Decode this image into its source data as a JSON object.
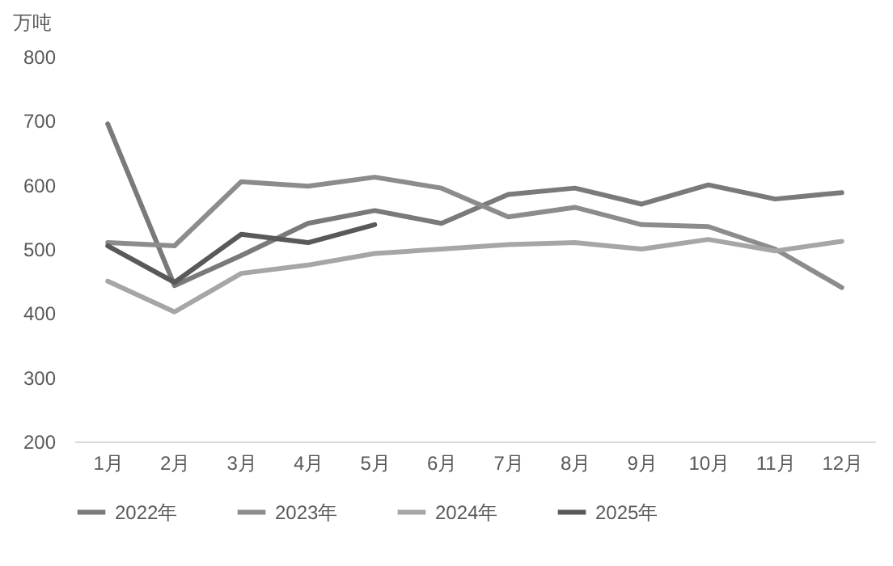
{
  "chart_data": {
    "type": "line",
    "ylabel": "万吨",
    "categories": [
      "1月",
      "2月",
      "3月",
      "4月",
      "5月",
      "6月",
      "7月",
      "8月",
      "9月",
      "10月",
      "11月",
      "12月"
    ],
    "series": [
      {
        "name": "2022年",
        "color": "#7a7a7a",
        "values": [
          695,
          443,
          490,
          540,
          560,
          540,
          585,
          595,
          570,
          600,
          578,
          588
        ]
      },
      {
        "name": "2023年",
        "color": "#8c8c8c",
        "values": [
          510,
          505,
          605,
          598,
          612,
          595,
          550,
          565,
          538,
          535,
          500,
          440
        ]
      },
      {
        "name": "2024年",
        "color": "#a6a6a6",
        "values": [
          450,
          402,
          462,
          475,
          493,
          500,
          507,
          510,
          500,
          515,
          497,
          512
        ]
      },
      {
        "name": "2025年",
        "color": "#595959",
        "values": [
          505,
          448,
          523,
          510,
          538,
          null,
          null,
          null,
          null,
          null,
          null,
          null
        ]
      }
    ],
    "ylim": [
      200,
      800
    ],
    "yticks": [
      200,
      300,
      400,
      500,
      600,
      700,
      800
    ],
    "grid": false,
    "legend": "bottom",
    "marker": "none",
    "line_style": "solid"
  }
}
